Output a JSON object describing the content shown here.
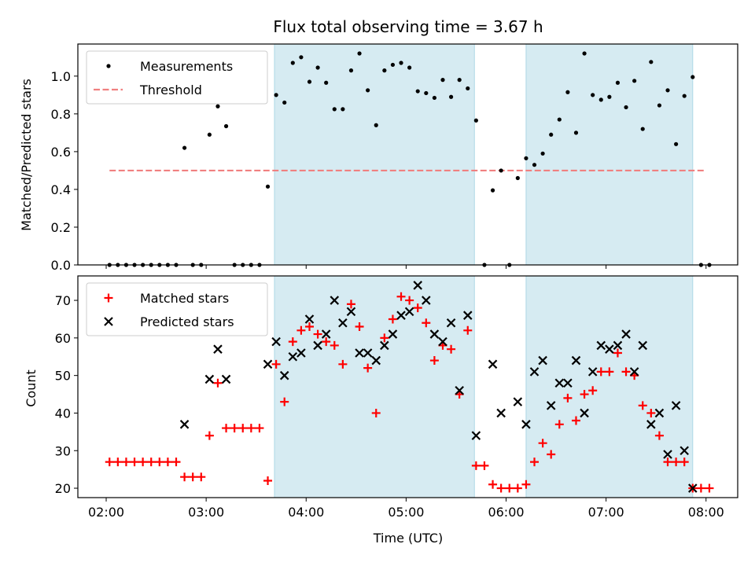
{
  "chart_data": [
    {
      "type": "scatter",
      "title": "Flux total observing time = 3.67 h",
      "ylabel": "Matched/Predicted stars",
      "xlabel": "",
      "xlim": [
        "01:43",
        "08:19"
      ],
      "ylim": [
        0,
        1.17
      ],
      "yticks": [
        "0.0",
        "0.2",
        "0.4",
        "0.6",
        "0.8",
        "1.0"
      ],
      "legend_placement": "top-left",
      "shaded_intervals": [
        [
          "03:41",
          "05:41"
        ],
        [
          "06:12",
          "07:52"
        ]
      ],
      "threshold": {
        "name": "Threshold",
        "value": 0.5,
        "x": [
          "02:02",
          "08:00"
        ],
        "color": "#f08080",
        "style": "dashed"
      },
      "series": [
        {
          "name": "Measurements",
          "color": "#000000",
          "marker": "dot",
          "points": [
            [
              "02:02",
              0
            ],
            [
              "02:07",
              0
            ],
            [
              "02:12",
              0
            ],
            [
              "02:17",
              0
            ],
            [
              "02:22",
              0
            ],
            [
              "02:27",
              0
            ],
            [
              "02:32",
              0
            ],
            [
              "02:37",
              0
            ],
            [
              "02:42",
              0
            ],
            [
              "02:47",
              0.62
            ],
            [
              "02:52",
              0
            ],
            [
              "02:57",
              0
            ],
            [
              "03:02",
              0.69
            ],
            [
              "03:07",
              0.84
            ],
            [
              "03:12",
              0.735
            ],
            [
              "03:17",
              0
            ],
            [
              "03:22",
              0
            ],
            [
              "03:27",
              0
            ],
            [
              "03:32",
              0
            ],
            [
              "03:37",
              0.415
            ],
            [
              "03:42",
              0.9
            ],
            [
              "03:47",
              0.86
            ],
            [
              "03:52",
              1.07
            ],
            [
              "03:57",
              1.1
            ],
            [
              "04:02",
              0.97
            ],
            [
              "04:07",
              1.045
            ],
            [
              "04:12",
              0.965
            ],
            [
              "04:17",
              0.825
            ],
            [
              "04:22",
              0.825
            ],
            [
              "04:27",
              1.03
            ],
            [
              "04:32",
              1.12
            ],
            [
              "04:37",
              0.925
            ],
            [
              "04:42",
              0.74
            ],
            [
              "04:47",
              1.03
            ],
            [
              "04:52",
              1.06
            ],
            [
              "04:57",
              1.07
            ],
            [
              "05:02",
              1.045
            ],
            [
              "05:07",
              0.92
            ],
            [
              "05:12",
              0.91
            ],
            [
              "05:17",
              0.885
            ],
            [
              "05:22",
              0.98
            ],
            [
              "05:27",
              0.89
            ],
            [
              "05:32",
              0.98
            ],
            [
              "05:37",
              0.935
            ],
            [
              "05:42",
              0.765
            ],
            [
              "05:47",
              0
            ],
            [
              "05:52",
              0.395
            ],
            [
              "05:57",
              0.5
            ],
            [
              "06:02",
              0
            ],
            [
              "06:07",
              0.46
            ],
            [
              "06:12",
              0.565
            ],
            [
              "06:17",
              0.53
            ],
            [
              "06:22",
              0.59
            ],
            [
              "06:27",
              0.69
            ],
            [
              "06:32",
              0.77
            ],
            [
              "06:37",
              0.915
            ],
            [
              "06:42",
              0.7
            ],
            [
              "06:47",
              1.12
            ],
            [
              "06:52",
              0.9
            ],
            [
              "06:57",
              0.875
            ],
            [
              "07:02",
              0.89
            ],
            [
              "07:07",
              0.965
            ],
            [
              "07:12",
              0.835
            ],
            [
              "07:17",
              0.975
            ],
            [
              "07:22",
              0.72
            ],
            [
              "07:27",
              1.075
            ],
            [
              "07:32",
              0.845
            ],
            [
              "07:37",
              0.925
            ],
            [
              "07:42",
              0.64
            ],
            [
              "07:47",
              0.895
            ],
            [
              "07:52",
              0.995
            ],
            [
              "07:57",
              0
            ],
            [
              "08:02",
              0
            ]
          ]
        }
      ]
    },
    {
      "type": "scatter",
      "title": "",
      "xlabel": "Time (UTC)",
      "ylabel": "Count",
      "xlim": [
        "01:43",
        "08:19"
      ],
      "ylim": [
        17.5,
        76.5
      ],
      "xticks": [
        "02:00",
        "03:00",
        "04:00",
        "05:00",
        "06:00",
        "07:00",
        "08:00"
      ],
      "yticks": [
        "20",
        "30",
        "40",
        "50",
        "60",
        "70"
      ],
      "legend_placement": "top-left",
      "shaded_intervals": [
        [
          "03:41",
          "05:41"
        ],
        [
          "06:12",
          "07:52"
        ]
      ],
      "series": [
        {
          "name": "Matched stars",
          "color": "#ff0000",
          "marker": "plus",
          "points": [
            [
              "02:02",
              27
            ],
            [
              "02:07",
              27
            ],
            [
              "02:12",
              27
            ],
            [
              "02:17",
              27
            ],
            [
              "02:22",
              27
            ],
            [
              "02:27",
              27
            ],
            [
              "02:32",
              27
            ],
            [
              "02:37",
              27
            ],
            [
              "02:42",
              27
            ],
            [
              "02:47",
              23
            ],
            [
              "02:52",
              23
            ],
            [
              "02:57",
              23
            ],
            [
              "03:02",
              34
            ],
            [
              "03:07",
              48
            ],
            [
              "03:12",
              36
            ],
            [
              "03:17",
              36
            ],
            [
              "03:22",
              36
            ],
            [
              "03:27",
              36
            ],
            [
              "03:32",
              36
            ],
            [
              "03:37",
              22
            ],
            [
              "03:42",
              53
            ],
            [
              "03:47",
              43
            ],
            [
              "03:52",
              59
            ],
            [
              "03:57",
              62
            ],
            [
              "04:02",
              63
            ],
            [
              "04:07",
              61
            ],
            [
              "04:12",
              59
            ],
            [
              "04:17",
              58
            ],
            [
              "04:22",
              53
            ],
            [
              "04:27",
              69
            ],
            [
              "04:32",
              63
            ],
            [
              "04:37",
              52
            ],
            [
              "04:42",
              40
            ],
            [
              "04:47",
              60
            ],
            [
              "04:52",
              65
            ],
            [
              "04:57",
              71
            ],
            [
              "05:02",
              70
            ],
            [
              "05:07",
              68
            ],
            [
              "05:12",
              64
            ],
            [
              "05:17",
              54
            ],
            [
              "05:22",
              58
            ],
            [
              "05:27",
              57
            ],
            [
              "05:32",
              45
            ],
            [
              "05:37",
              62
            ],
            [
              "05:42",
              26
            ],
            [
              "05:47",
              26
            ],
            [
              "05:52",
              21
            ],
            [
              "05:57",
              20
            ],
            [
              "06:02",
              20
            ],
            [
              "06:07",
              20
            ],
            [
              "06:12",
              21
            ],
            [
              "06:17",
              27
            ],
            [
              "06:22",
              32
            ],
            [
              "06:27",
              29
            ],
            [
              "06:32",
              37
            ],
            [
              "06:37",
              44
            ],
            [
              "06:42",
              38
            ],
            [
              "06:47",
              45
            ],
            [
              "06:52",
              46
            ],
            [
              "06:57",
              51
            ],
            [
              "07:02",
              51
            ],
            [
              "07:07",
              56
            ],
            [
              "07:12",
              51
            ],
            [
              "07:17",
              50
            ],
            [
              "07:22",
              42
            ],
            [
              "07:27",
              40
            ],
            [
              "07:32",
              34
            ],
            [
              "07:37",
              27
            ],
            [
              "07:42",
              27
            ],
            [
              "07:47",
              27
            ],
            [
              "07:52",
              20
            ],
            [
              "07:57",
              20
            ],
            [
              "08:02",
              20
            ]
          ]
        },
        {
          "name": "Predicted stars",
          "color": "#000000",
          "marker": "x",
          "points": [
            [
              "02:47",
              37
            ],
            [
              "03:02",
              49
            ],
            [
              "03:07",
              57
            ],
            [
              "03:12",
              49
            ],
            [
              "03:37",
              53
            ],
            [
              "03:42",
              59
            ],
            [
              "03:47",
              50
            ],
            [
              "03:52",
              55
            ],
            [
              "03:57",
              56
            ],
            [
              "04:02",
              65
            ],
            [
              "04:07",
              58
            ],
            [
              "04:12",
              61
            ],
            [
              "04:17",
              70
            ],
            [
              "04:22",
              64
            ],
            [
              "04:27",
              67
            ],
            [
              "04:32",
              56
            ],
            [
              "04:37",
              56
            ],
            [
              "04:42",
              54
            ],
            [
              "04:47",
              58
            ],
            [
              "04:52",
              61
            ],
            [
              "04:57",
              66
            ],
            [
              "05:02",
              67
            ],
            [
              "05:07",
              74
            ],
            [
              "05:12",
              70
            ],
            [
              "05:17",
              61
            ],
            [
              "05:22",
              59
            ],
            [
              "05:27",
              64
            ],
            [
              "05:32",
              46
            ],
            [
              "05:37",
              66
            ],
            [
              "05:42",
              34
            ],
            [
              "05:52",
              53
            ],
            [
              "05:57",
              40
            ],
            [
              "06:07",
              43
            ],
            [
              "06:12",
              37
            ],
            [
              "06:17",
              51
            ],
            [
              "06:22",
              54
            ],
            [
              "06:27",
              42
            ],
            [
              "06:32",
              48
            ],
            [
              "06:37",
              48
            ],
            [
              "06:42",
              54
            ],
            [
              "06:47",
              40
            ],
            [
              "06:52",
              51
            ],
            [
              "06:57",
              58
            ],
            [
              "07:02",
              57
            ],
            [
              "07:07",
              58
            ],
            [
              "07:12",
              61
            ],
            [
              "07:17",
              51
            ],
            [
              "07:22",
              58
            ],
            [
              "07:27",
              37
            ],
            [
              "07:32",
              40
            ],
            [
              "07:37",
              29
            ],
            [
              "07:42",
              42
            ],
            [
              "07:47",
              30
            ],
            [
              "07:52",
              20
            ]
          ]
        }
      ]
    }
  ]
}
